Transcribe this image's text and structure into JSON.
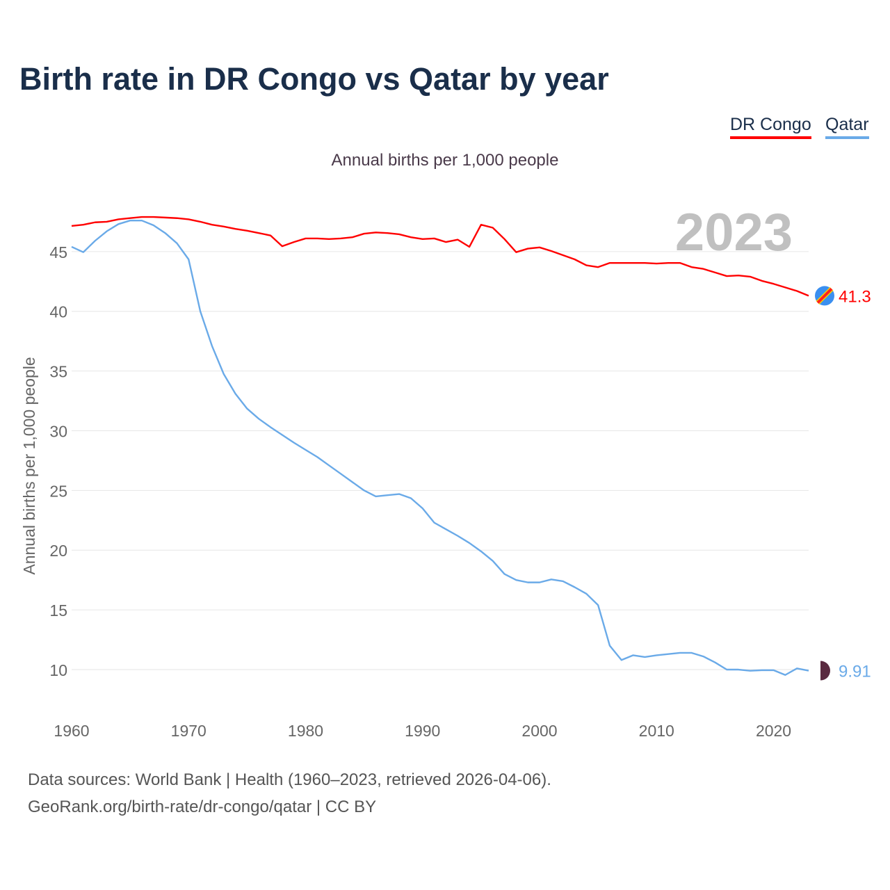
{
  "chart_data": {
    "type": "line",
    "title": "Birth rate in DR Congo vs Qatar by year",
    "subtitle": "Annual births per 1,000 people",
    "ylabel": "Annual births per 1,000 people",
    "xlabel": "",
    "year_label": "2023",
    "xlim": [
      1960,
      2023
    ],
    "ylim": [
      6.1,
      48.6
    ],
    "xticks": [
      1960,
      1970,
      1980,
      1990,
      2000,
      2010,
      2020
    ],
    "yticks": [
      10,
      15,
      20,
      25,
      30,
      35,
      40,
      45
    ],
    "grid": true,
    "legend_placement": "top-right",
    "x": [
      1960,
      1961,
      1962,
      1963,
      1964,
      1965,
      1966,
      1967,
      1968,
      1969,
      1970,
      1971,
      1972,
      1973,
      1974,
      1975,
      1976,
      1977,
      1978,
      1979,
      1980,
      1981,
      1982,
      1983,
      1984,
      1985,
      1986,
      1987,
      1988,
      1989,
      1990,
      1991,
      1992,
      1993,
      1994,
      1995,
      1996,
      1997,
      1998,
      1999,
      2000,
      2001,
      2002,
      2003,
      2004,
      2005,
      2006,
      2007,
      2008,
      2009,
      2010,
      2011,
      2012,
      2013,
      2014,
      2015,
      2016,
      2017,
      2018,
      2019,
      2020,
      2021,
      2022,
      2023
    ],
    "series": [
      {
        "name": "DR Congo",
        "color": "#ff0000",
        "end_label": "41.3",
        "values": [
          47.15,
          47.25,
          47.45,
          47.5,
          47.7,
          47.8,
          47.9,
          47.9,
          47.85,
          47.8,
          47.7,
          47.5,
          47.25,
          47.1,
          46.9,
          46.75,
          46.55,
          46.35,
          45.45,
          45.8,
          46.1,
          46.1,
          46.05,
          46.1,
          46.2,
          46.5,
          46.6,
          46.55,
          46.45,
          46.2,
          46.05,
          46.1,
          45.8,
          46.0,
          45.4,
          47.25,
          47.0,
          46.05,
          44.95,
          45.25,
          45.35,
          45.05,
          44.7,
          44.35,
          43.85,
          43.7,
          44.05,
          44.05,
          44.05,
          44.05,
          44.0,
          44.05,
          44.05,
          43.7,
          43.55,
          43.25,
          42.95,
          43.0,
          42.9,
          42.55,
          42.3,
          42.0,
          41.7,
          41.3
        ]
      },
      {
        "name": "Qatar",
        "color": "#6aaae8",
        "end_label": "9.91",
        "values": [
          45.4,
          44.95,
          45.9,
          46.7,
          47.3,
          47.6,
          47.6,
          47.2,
          46.55,
          45.7,
          44.35,
          40.0,
          37.1,
          34.75,
          33.1,
          31.85,
          31.0,
          30.3,
          29.65,
          29.0,
          28.4,
          27.8,
          27.1,
          26.4,
          25.7,
          25.0,
          24.5,
          24.6,
          24.7,
          24.35,
          23.5,
          22.3,
          21.75,
          21.2,
          20.6,
          19.9,
          19.1,
          18.0,
          17.5,
          17.3,
          17.3,
          17.55,
          17.4,
          16.9,
          16.35,
          15.4,
          12.0,
          10.8,
          11.2,
          11.05,
          11.2,
          11.3,
          11.4,
          11.4,
          11.1,
          10.6,
          10.0,
          10.0,
          9.9,
          9.95,
          9.95,
          9.55,
          10.1,
          9.91
        ]
      }
    ]
  },
  "footer": {
    "source": "Data sources: World Bank | Health (1960–2023, retrieved 2026-04-06).",
    "credit": "GeoRank.org/birth-rate/dr-congo/qatar | CC BY"
  }
}
